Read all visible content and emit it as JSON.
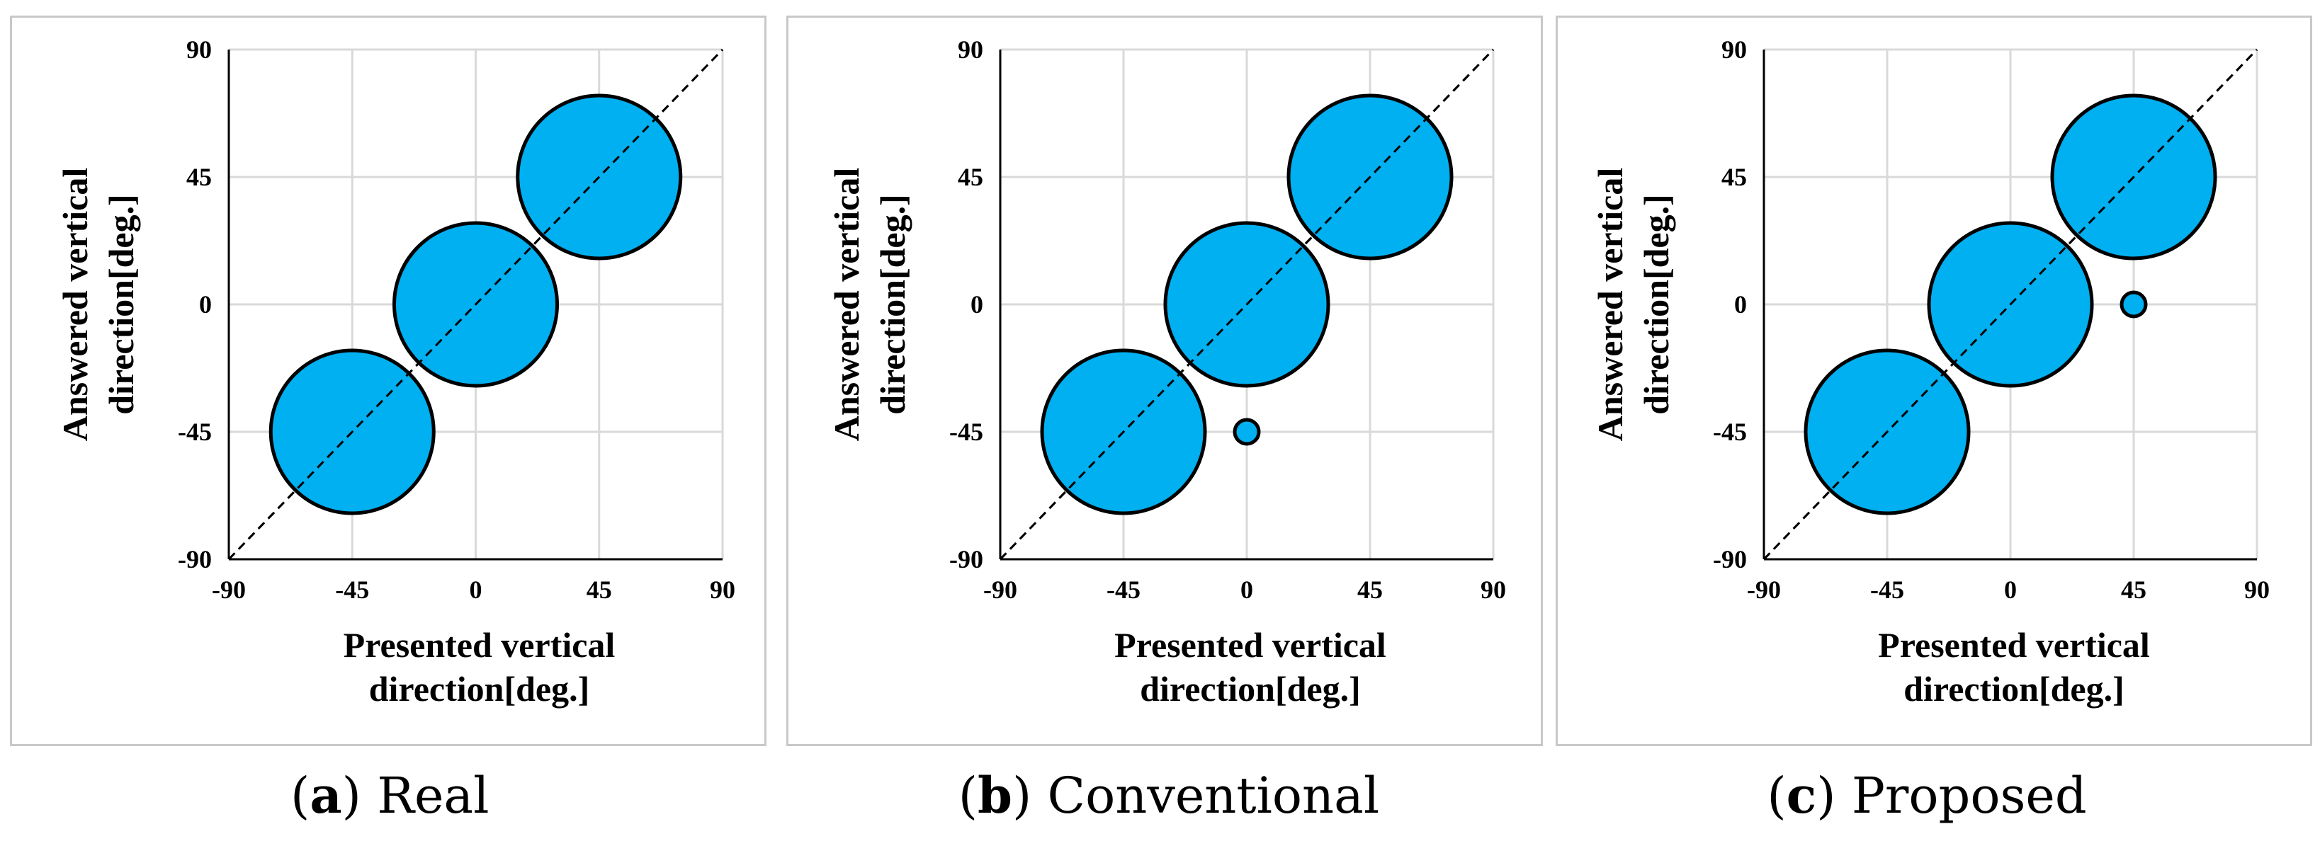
{
  "bubble_color": "#00b0f0",
  "chart_data": [
    {
      "type": "scatter",
      "subtype": "bubble",
      "caption_letter": "a",
      "caption_text": "Real",
      "xlabel_lines": [
        "Presented vertical",
        "direction[deg.]"
      ],
      "ylabel_lines": [
        "Answered  vertical",
        "direction[deg.]"
      ],
      "xlim": [
        -90,
        90
      ],
      "ylim": [
        -90,
        90
      ],
      "xticks": [
        "-90",
        "-45",
        "0",
        "45",
        "90"
      ],
      "yticks": [
        "-90",
        "-45",
        "0",
        "45",
        "90"
      ],
      "grid": true,
      "reference_line": "y = x (dashed)",
      "points": [
        {
          "x": -45,
          "y": -45,
          "size": 1.0
        },
        {
          "x": 0,
          "y": 0,
          "size": 1.0
        },
        {
          "x": 45,
          "y": 45,
          "size": 1.0
        }
      ]
    },
    {
      "type": "scatter",
      "subtype": "bubble",
      "caption_letter": "b",
      "caption_text": "Conventional",
      "xlabel_lines": [
        "Presented vertical",
        "direction[deg.]"
      ],
      "ylabel_lines": [
        "Answered  vertical",
        "direction[deg.]"
      ],
      "xlim": [
        -90,
        90
      ],
      "ylim": [
        -90,
        90
      ],
      "xticks": [
        "-90",
        "-45",
        "0",
        "45",
        "90"
      ],
      "yticks": [
        "-90",
        "-45",
        "0",
        "45",
        "90"
      ],
      "grid": true,
      "reference_line": "y = x (dashed)",
      "points": [
        {
          "x": -45,
          "y": -45,
          "size": 1.0
        },
        {
          "x": 0,
          "y": -45,
          "size": 0.01
        },
        {
          "x": 0,
          "y": 0,
          "size": 1.0
        },
        {
          "x": 45,
          "y": 45,
          "size": 1.0
        }
      ]
    },
    {
      "type": "scatter",
      "subtype": "bubble",
      "caption_letter": "c",
      "caption_text": "Proposed",
      "xlabel_lines": [
        "Presented vertical",
        "direction[deg.]"
      ],
      "ylabel_lines": [
        "Answered  vertical",
        "direction[deg.]"
      ],
      "xlim": [
        -90,
        90
      ],
      "ylim": [
        -90,
        90
      ],
      "xticks": [
        "-90",
        "-45",
        "0",
        "45",
        "90"
      ],
      "yticks": [
        "-90",
        "-45",
        "0",
        "45",
        "90"
      ],
      "grid": true,
      "reference_line": "y = x (dashed)",
      "points": [
        {
          "x": -45,
          "y": -45,
          "size": 1.0
        },
        {
          "x": 0,
          "y": 0,
          "size": 1.0
        },
        {
          "x": 45,
          "y": 0,
          "size": 0.01
        },
        {
          "x": 45,
          "y": 45,
          "size": 1.0
        }
      ]
    }
  ]
}
